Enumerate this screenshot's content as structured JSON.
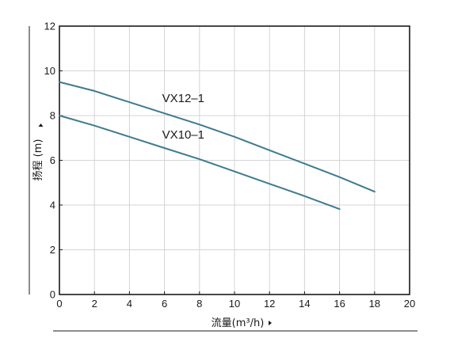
{
  "chart_data": {
    "type": "line",
    "xlabel": "流量(m³/h)",
    "ylabel": "扬程 (m)",
    "xlim": [
      0,
      20
    ],
    "ylim": [
      0,
      12
    ],
    "xticks": [
      "0",
      "2",
      "4",
      "6",
      "8",
      "10",
      "12",
      "14",
      "16",
      "18",
      "20"
    ],
    "yticks": [
      "0",
      "2",
      "4",
      "6",
      "8",
      "10",
      "12"
    ],
    "grid": true,
    "line_color": "#3e7b8d",
    "series": [
      {
        "name": "VX12–1",
        "x": [
          0,
          2,
          4,
          6,
          8,
          10,
          12,
          14,
          16,
          18
        ],
        "y": [
          9.5,
          9.1,
          8.6,
          8.1,
          7.6,
          7.05,
          6.45,
          5.85,
          5.25,
          4.6
        ]
      },
      {
        "name": "VX10–1",
        "x": [
          0,
          2,
          4,
          6,
          8,
          10,
          12,
          14,
          16
        ],
        "y": [
          8.0,
          7.55,
          7.05,
          6.55,
          6.05,
          5.5,
          4.95,
          4.4,
          3.82
        ]
      }
    ]
  }
}
